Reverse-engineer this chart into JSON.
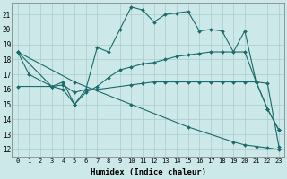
{
  "xlabel": "Humidex (Indice chaleur)",
  "background_color": "#cce8e8",
  "grid_color": "#aacccc",
  "line_color": "#1a6b6b",
  "xlim": [
    -0.5,
    23.5
  ],
  "ylim": [
    11.5,
    21.8
  ],
  "yticks": [
    12,
    13,
    14,
    15,
    16,
    17,
    18,
    19,
    20,
    21
  ],
  "xticks": [
    0,
    1,
    2,
    3,
    4,
    5,
    6,
    7,
    8,
    9,
    10,
    11,
    12,
    13,
    14,
    15,
    16,
    17,
    18,
    19,
    20,
    21,
    22,
    23
  ],
  "lines": [
    {
      "x": [
        0,
        1,
        3,
        4,
        5,
        6,
        7,
        8,
        9,
        10,
        11,
        12,
        13,
        14,
        15,
        16,
        17,
        18,
        19,
        20,
        21,
        22,
        23
      ],
      "y": [
        18.5,
        17.0,
        16.2,
        16.0,
        15.0,
        16.0,
        18.8,
        18.5,
        20.0,
        21.5,
        21.3,
        20.5,
        21.0,
        21.1,
        21.2,
        19.9,
        20.0,
        19.9,
        18.5,
        19.9,
        16.5,
        14.7,
        13.3
      ]
    },
    {
      "x": [
        0,
        3,
        4,
        5,
        6,
        7,
        8,
        9,
        10,
        11,
        12,
        13,
        14,
        15,
        16,
        17,
        18,
        20,
        21,
        22,
        23
      ],
      "y": [
        18.5,
        16.2,
        16.5,
        15.0,
        15.8,
        16.2,
        16.8,
        17.3,
        17.5,
        17.7,
        17.8,
        18.0,
        18.2,
        18.3,
        18.4,
        18.5,
        18.5,
        18.5,
        16.5,
        14.7,
        13.3
      ]
    },
    {
      "x": [
        0,
        3,
        4,
        5,
        6,
        7,
        10,
        11,
        12,
        13,
        14,
        15,
        16,
        17,
        18,
        19,
        20,
        21,
        22,
        23
      ],
      "y": [
        16.2,
        16.2,
        16.3,
        15.8,
        16.0,
        16.0,
        16.3,
        16.4,
        16.5,
        16.5,
        16.5,
        16.5,
        16.5,
        16.5,
        16.5,
        16.5,
        16.5,
        16.5,
        16.4,
        12.2
      ]
    },
    {
      "x": [
        0,
        5,
        10,
        15,
        19,
        20,
        21,
        22,
        23
      ],
      "y": [
        18.5,
        16.5,
        15.0,
        13.5,
        12.5,
        12.3,
        12.2,
        12.1,
        12.0
      ]
    }
  ]
}
